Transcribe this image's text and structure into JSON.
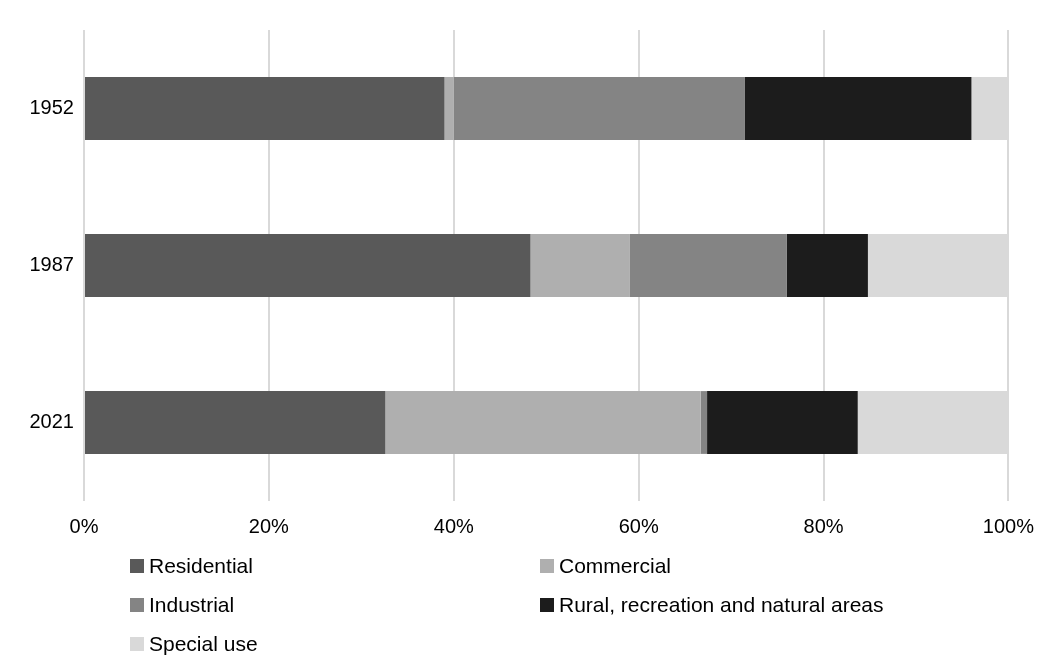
{
  "chart_data": {
    "type": "bar",
    "orientation": "horizontal",
    "stacked": true,
    "categories": [
      "1952",
      "1987",
      "2021"
    ],
    "series": [
      {
        "name": "Residential",
        "color": "#595959",
        "values": [
          39.0,
          48.3,
          32.6
        ]
      },
      {
        "name": "Commercial",
        "color": "#afafaf",
        "values": [
          1.0,
          10.7,
          34.1
        ]
      },
      {
        "name": "Industrial",
        "color": "#848484",
        "values": [
          31.5,
          17.0,
          0.7
        ]
      },
      {
        "name": "Rural, recreation and natural areas",
        "color": "#1c1c1c",
        "values": [
          24.5,
          8.8,
          16.3
        ]
      },
      {
        "name": "Special use",
        "color": "#d9d9d9",
        "values": [
          4.0,
          15.2,
          16.3
        ]
      }
    ],
    "xlim": [
      0,
      100
    ],
    "xticks": [
      {
        "value": 0,
        "label": "0%"
      },
      {
        "value": 20,
        "label": "20%"
      },
      {
        "value": 40,
        "label": "40%"
      },
      {
        "value": 60,
        "label": "60%"
      },
      {
        "value": 80,
        "label": "80%"
      },
      {
        "value": 100,
        "label": "100%"
      }
    ],
    "grid": "x",
    "legend": "bottom"
  }
}
